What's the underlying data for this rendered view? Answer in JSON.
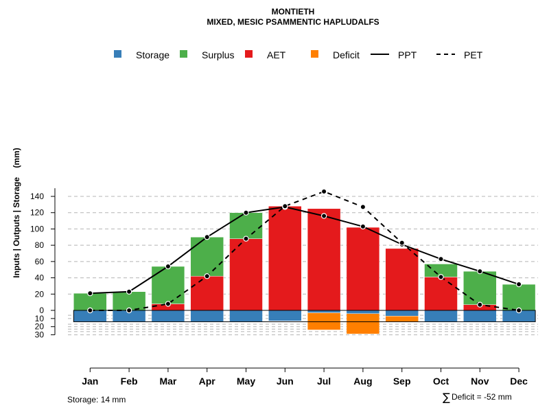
{
  "chart_data": {
    "type": "bar",
    "title": "MONTIETH",
    "subtitle": "MIXED, MESIC PSAMMENTIC HAPLUDALFS",
    "ylabel": "Inputs | Outputs | Storage    (mm)",
    "xlabel": "",
    "ylim": [
      -30,
      150
    ],
    "yticks_positive": [
      0,
      20,
      40,
      60,
      80,
      100,
      120,
      140
    ],
    "yticks_negative": [
      10,
      20,
      30
    ],
    "categories": [
      "Jan",
      "Feb",
      "Mar",
      "Apr",
      "May",
      "Jun",
      "Jul",
      "Aug",
      "Sep",
      "Oct",
      "Nov",
      "Dec"
    ],
    "legend": [
      "Storage",
      "Surplus",
      "AET",
      "Deficit",
      "PPT",
      "PET"
    ],
    "colors": {
      "storage": "#377EB8",
      "surplus": "#4DAF4A",
      "aet": "#E41A1C",
      "deficit": "#FF7F00",
      "line": "#000000",
      "grid": "#b4b4b4"
    },
    "series": [
      {
        "name": "AET",
        "values": [
          0,
          0,
          8,
          42,
          88,
          128,
          125,
          102,
          76,
          41,
          7,
          0
        ]
      },
      {
        "name": "Surplus",
        "values": [
          21,
          23,
          46,
          48,
          32,
          0,
          0,
          0,
          0,
          16,
          41,
          32
        ]
      },
      {
        "name": "Storage",
        "values": [
          14,
          14,
          14,
          14,
          14,
          13,
          3,
          4,
          7,
          14,
          14,
          14
        ]
      },
      {
        "name": "Deficit",
        "values": [
          0,
          0,
          0,
          0,
          0,
          0,
          21,
          25,
          7,
          0,
          0,
          0
        ]
      },
      {
        "name": "PPT",
        "values": [
          21,
          23,
          54,
          90,
          120,
          127,
          116,
          103,
          81,
          63,
          48,
          32
        ]
      },
      {
        "name": "PET",
        "values": [
          0,
          0,
          8,
          42,
          88,
          128,
          146,
          127,
          83,
          41,
          7,
          0
        ]
      }
    ],
    "storage_capacity": 14,
    "annotations": {
      "storage_label": "Storage: 14 mm",
      "sigma_symbol": "∑",
      "deficit_label": "Deficit = -52 mm"
    }
  }
}
